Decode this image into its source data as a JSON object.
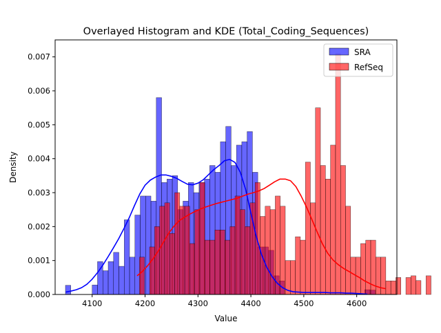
{
  "chart_data": {
    "type": "histogram",
    "title": "Overlayed Histogram and KDE (Total_Coding_Sequences)",
    "xlabel": "Value",
    "ylabel": "Density",
    "xlim": [
      4030,
      4676
    ],
    "ylim": [
      0,
      0.0075
    ],
    "x_ticks": [
      4100,
      4200,
      4300,
      4400,
      4500,
      4600
    ],
    "y_ticks": [
      0.0,
      0.001,
      0.002,
      0.003,
      0.004,
      0.005,
      0.006,
      0.007
    ],
    "y_tick_labels": [
      "0.000",
      "0.001",
      "0.002",
      "0.003",
      "0.004",
      "0.005",
      "0.006",
      "0.007"
    ],
    "grid": false,
    "legend_position": "top-right",
    "series": [
      {
        "name": "SRA",
        "color": "#0000ff",
        "kde_color": "#0000ff",
        "bin_start": 4049.5,
        "bin_width": 10.1,
        "values": [
          0.00027,
          0,
          0,
          0,
          0,
          0.00028,
          0.00097,
          0.0007,
          0.00097,
          0.00124,
          0.00083,
          0.0022,
          0.0011,
          0.00234,
          0.0029,
          0.0029,
          0.00275,
          0.0058,
          0.0033,
          0.0034,
          0.0035,
          0.0025,
          0.00275,
          0.0033,
          0.003,
          0.0033,
          0.0034,
          0.0038,
          0.0036,
          0.0045,
          0.00495,
          0.0038,
          0.0044,
          0.0045,
          0.0048,
          0.0036,
          0.0014,
          0.0014,
          0.0013,
          0.00055,
          0.0004,
          0,
          0,
          0,
          0,
          0,
          0,
          0,
          0,
          0,
          0,
          0,
          0,
          0,
          0,
          0,
          0.00014,
          0.00013,
          0,
          0,
          0,
          0
        ],
        "kde": {
          "x": [
            4050,
            4060,
            4070,
            4080,
            4090,
            4100,
            4110,
            4120,
            4130,
            4140,
            4150,
            4160,
            4170,
            4180,
            4190,
            4200,
            4210,
            4220,
            4230,
            4240,
            4250,
            4260,
            4270,
            4280,
            4290,
            4300,
            4310,
            4320,
            4330,
            4340,
            4350,
            4360,
            4370,
            4380,
            4390,
            4400,
            4410,
            4420,
            4430,
            4440,
            4450,
            4460,
            4470,
            4480,
            4490,
            4500,
            4510,
            4520,
            4530,
            4540,
            4550,
            4560,
            4570,
            4580,
            4590,
            4600,
            4610,
            4620
          ],
          "y": [
            7e-05,
            0.0001,
            0.00014,
            0.0002,
            0.0003,
            0.00045,
            0.00064,
            0.00086,
            0.00111,
            0.00137,
            0.00164,
            0.00194,
            0.00226,
            0.00262,
            0.00296,
            0.00322,
            0.00337,
            0.00346,
            0.00352,
            0.00352,
            0.00348,
            0.00342,
            0.00333,
            0.00325,
            0.00323,
            0.00328,
            0.00338,
            0.00353,
            0.00368,
            0.0038,
            0.00394,
            0.00398,
            0.00389,
            0.0036,
            0.0031,
            0.0024,
            0.00172,
            0.00118,
            0.0008,
            0.00053,
            0.00033,
            0.0002,
            0.00012,
            8e-05,
            7e-05,
            6e-05,
            6e-05,
            6e-05,
            6e-05,
            6e-05,
            5e-05,
            5e-05,
            5e-05,
            4e-05,
            4e-05,
            3e-05,
            2e-05,
            1e-05
          ]
        }
      },
      {
        "name": "RefSeq",
        "color": "#ff0000",
        "kde_color": "#ff0000",
        "bin_start": 4189.5,
        "bin_width": 9.5,
        "values": [
          0.0011,
          0,
          0.0014,
          0.002,
          0.0026,
          0.0027,
          0.0018,
          0.003,
          0.0026,
          0.0026,
          0.0015,
          0.0025,
          0.0033,
          0.0016,
          0.0016,
          0.0019,
          0.0019,
          0.0016,
          0.002,
          0.0029,
          0.0025,
          0.002,
          0.0027,
          0.0033,
          0.0023,
          0.0026,
          0.0025,
          0.0029,
          0.0026,
          0.001,
          0.001,
          0.0017,
          0.0016,
          0.0039,
          0.0027,
          0.0055,
          0.0038,
          0.0034,
          0.0044,
          0.0071,
          0.0038,
          0.0026,
          0.0011,
          0.0011,
          0.0015,
          0.0016,
          0.0016,
          0.0011,
          0.0011,
          0.0004,
          0.0004,
          0.0005,
          0,
          0.0005,
          0.00055,
          0.00041,
          0,
          0.00055
        ],
        "kde": {
          "x": [
            4185,
            4195,
            4205,
            4215,
            4225,
            4235,
            4245,
            4255,
            4265,
            4275,
            4285,
            4295,
            4305,
            4315,
            4325,
            4335,
            4345,
            4355,
            4365,
            4375,
            4385,
            4395,
            4405,
            4415,
            4425,
            4435,
            4445,
            4455,
            4465,
            4475,
            4485,
            4495,
            4505,
            4515,
            4525,
            4535,
            4545,
            4555,
            4565,
            4575,
            4585,
            4595,
            4605,
            4615,
            4625,
            4635,
            4645,
            4655
          ],
          "y": [
            0.00055,
            0.00068,
            0.00085,
            0.00105,
            0.00128,
            0.00155,
            0.00181,
            0.00202,
            0.00218,
            0.00228,
            0.00237,
            0.00245,
            0.00252,
            0.00258,
            0.00263,
            0.00268,
            0.00272,
            0.00276,
            0.0028,
            0.00284,
            0.0029,
            0.00296,
            0.003,
            0.00305,
            0.00312,
            0.00322,
            0.00332,
            0.0034,
            0.0034,
            0.00335,
            0.00318,
            0.0029,
            0.00258,
            0.00222,
            0.00185,
            0.0015,
            0.00122,
            0.00102,
            0.00088,
            0.00077,
            0.00068,
            0.00059,
            0.0005,
            0.0004,
            0.00032,
            0.00025,
            0.0002,
            0.00017
          ]
        }
      }
    ]
  }
}
